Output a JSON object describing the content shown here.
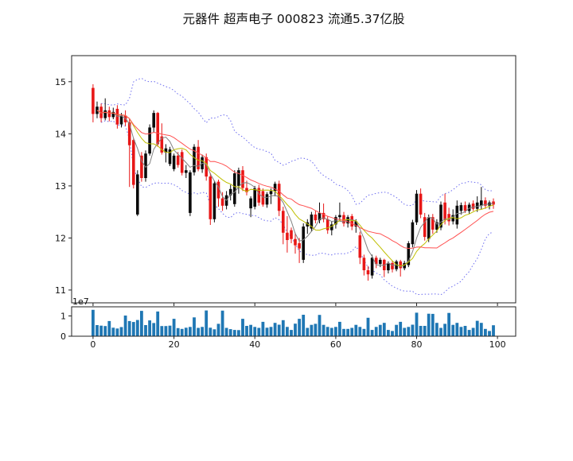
{
  "chart_data": {
    "type": "candlestick",
    "title": "元器件 超声电子 000823 流通5.37亿股",
    "legend_position": "none",
    "grid": false,
    "x_axis": {
      "ticks": [
        0,
        20,
        40,
        60,
        80,
        100
      ],
      "range": [
        -5.3,
        104.5
      ]
    },
    "price_axis": {
      "ticks": [
        11,
        12,
        13,
        14,
        15
      ],
      "range": [
        10.755,
        15.5
      ]
    },
    "volume_axis": {
      "ticks": [
        {
          "value": 0,
          "label": "0"
        },
        {
          "value": 10000000,
          "label": "1"
        }
      ],
      "offset_label": "1e7",
      "range": [
        0,
        14500000
      ]
    },
    "colors": {
      "up": "#0a0a0a",
      "down": "#e81717",
      "volume": "#1f77b4",
      "frame": "#222222"
    },
    "overlays": {
      "moving_averages": [
        {
          "name": "MA5",
          "window": 5,
          "color": "#808080"
        },
        {
          "name": "MA10",
          "window": 10,
          "color": "#bfbf00"
        },
        {
          "name": "MA20",
          "window": 20,
          "color": "#ff5050"
        }
      ],
      "bollinger": {
        "window": 20,
        "mult": 2,
        "color": "#6b6bef"
      }
    },
    "series": {
      "ohlc": [
        [
          14.88,
          14.95,
          14.22,
          14.38
        ],
        [
          14.38,
          14.62,
          14.3,
          14.52
        ],
        [
          14.52,
          14.58,
          14.22,
          14.3
        ],
        [
          14.3,
          14.68,
          14.26,
          14.45
        ],
        [
          14.45,
          14.52,
          14.24,
          14.32
        ],
        [
          14.32,
          14.5,
          14.28,
          14.42
        ],
        [
          14.48,
          14.55,
          14.1,
          14.18
        ],
        [
          14.18,
          14.4,
          14.12,
          14.35
        ],
        [
          14.35,
          14.45,
          14.15,
          14.22
        ],
        [
          14.22,
          14.28,
          12.98,
          13.78
        ],
        [
          13.88,
          13.92,
          12.95,
          13.02
        ],
        [
          12.45,
          13.3,
          12.42,
          13.22
        ],
        [
          13.58,
          13.65,
          13.08,
          13.15
        ],
        [
          13.15,
          13.68,
          13.08,
          13.62
        ],
        [
          13.62,
          14.18,
          13.58,
          14.12
        ],
        [
          14.12,
          14.45,
          14.02,
          14.4
        ],
        [
          14.4,
          14.42,
          13.75,
          13.8
        ],
        [
          13.95,
          14.2,
          13.6,
          13.64
        ],
        [
          13.64,
          13.8,
          13.45,
          13.72
        ],
        [
          13.42,
          13.75,
          13.38,
          13.7
        ],
        [
          13.32,
          13.62,
          13.28,
          13.58
        ],
        [
          13.58,
          13.65,
          13.35,
          13.4
        ],
        [
          13.65,
          13.7,
          13.2,
          13.25
        ],
        [
          13.25,
          13.4,
          13.15,
          13.3
        ],
        [
          12.48,
          13.3,
          12.42,
          13.26
        ],
        [
          13.26,
          13.8,
          13.2,
          13.75
        ],
        [
          13.75,
          13.88,
          13.28,
          13.32
        ],
        [
          13.32,
          13.6,
          13.25,
          13.55
        ],
        [
          13.55,
          13.62,
          13.1,
          13.18
        ],
        [
          13.18,
          13.25,
          12.25,
          12.36
        ],
        [
          12.36,
          13.1,
          12.3,
          13.05
        ],
        [
          13.08,
          13.12,
          12.6,
          12.76
        ],
        [
          12.76,
          12.88,
          12.52,
          12.62
        ],
        [
          12.62,
          12.9,
          12.55,
          12.82
        ],
        [
          12.82,
          13.02,
          12.72,
          12.94
        ],
        [
          12.65,
          13.3,
          12.6,
          13.24
        ],
        [
          13.0,
          13.35,
          12.85,
          13.3
        ],
        [
          13.3,
          13.38,
          12.9,
          12.96
        ],
        [
          12.96,
          13.1,
          12.82,
          12.88
        ],
        [
          12.57,
          12.8,
          12.4,
          12.76
        ],
        [
          12.6,
          13.0,
          12.55,
          12.96
        ],
        [
          12.96,
          13.02,
          12.62,
          12.68
        ],
        [
          12.9,
          12.95,
          12.6,
          12.64
        ],
        [
          12.64,
          12.88,
          12.58,
          12.84
        ],
        [
          12.84,
          12.95,
          12.65,
          12.9
        ],
        [
          12.9,
          13.08,
          12.8,
          13.04
        ],
        [
          13.04,
          13.1,
          12.42,
          12.52
        ],
        [
          12.52,
          12.6,
          11.88,
          12.1
        ],
        [
          12.1,
          12.42,
          11.72,
          11.96
        ],
        [
          12.15,
          12.2,
          11.9,
          11.98
        ],
        [
          11.98,
          12.1,
          11.7,
          11.86
        ],
        [
          11.9,
          12.0,
          11.52,
          11.8
        ],
        [
          11.58,
          12.28,
          11.52,
          12.22
        ],
        [
          12.22,
          12.36,
          12.08,
          12.3
        ],
        [
          12.18,
          12.5,
          12.12,
          12.45
        ],
        [
          12.45,
          12.52,
          12.28,
          12.34
        ],
        [
          12.34,
          12.68,
          12.28,
          12.48
        ],
        [
          12.48,
          12.66,
          12.3,
          12.36
        ],
        [
          12.36,
          12.42,
          12.08,
          12.15
        ],
        [
          12.15,
          12.32,
          12.05,
          12.26
        ],
        [
          12.26,
          12.44,
          12.18,
          12.4
        ],
        [
          12.4,
          12.68,
          12.32,
          12.44
        ],
        [
          12.44,
          12.5,
          12.22,
          12.28
        ],
        [
          12.28,
          12.44,
          12.2,
          12.4
        ],
        [
          12.42,
          12.46,
          12.15,
          12.22
        ],
        [
          12.22,
          12.36,
          12.1,
          12.32
        ],
        [
          12.05,
          12.12,
          11.5,
          11.62
        ],
        [
          11.62,
          11.68,
          11.28,
          11.38
        ],
        [
          11.38,
          11.46,
          11.18,
          11.3
        ],
        [
          11.28,
          11.68,
          11.22,
          11.62
        ],
        [
          11.62,
          11.66,
          11.42,
          11.5
        ],
        [
          11.5,
          11.62,
          11.44,
          11.58
        ],
        [
          11.58,
          11.6,
          11.25,
          11.38
        ],
        [
          11.38,
          11.55,
          11.32,
          11.52
        ],
        [
          11.52,
          11.56,
          11.34,
          11.4
        ],
        [
          11.4,
          11.58,
          11.36,
          11.55
        ],
        [
          11.55,
          11.58,
          11.26,
          11.42
        ],
        [
          11.42,
          11.56,
          11.38,
          11.52
        ],
        [
          11.48,
          11.94,
          11.44,
          11.9
        ],
        [
          11.88,
          12.35,
          11.82,
          12.3
        ],
        [
          12.3,
          12.92,
          12.25,
          12.85
        ],
        [
          12.85,
          12.95,
          12.38,
          12.45
        ],
        [
          12.4,
          12.48,
          11.95,
          12.02
        ],
        [
          11.98,
          12.45,
          11.92,
          12.4
        ],
        [
          12.4,
          12.46,
          12.08,
          12.16
        ],
        [
          12.16,
          12.36,
          12.1,
          12.3
        ],
        [
          12.2,
          12.7,
          12.15,
          12.64
        ],
        [
          12.68,
          12.85,
          12.26,
          12.34
        ],
        [
          12.46,
          12.58,
          12.24,
          12.32
        ],
        [
          12.32,
          12.55,
          12.26,
          12.44
        ],
        [
          12.26,
          12.72,
          12.18,
          12.62
        ],
        [
          12.52,
          12.68,
          12.45,
          12.63
        ],
        [
          12.63,
          12.7,
          12.48,
          12.52
        ],
        [
          12.52,
          12.68,
          12.46,
          12.64
        ],
        [
          12.66,
          12.72,
          12.52,
          12.56
        ],
        [
          12.56,
          12.8,
          12.5,
          12.68
        ],
        [
          12.62,
          12.98,
          12.55,
          12.72
        ],
        [
          12.72,
          12.78,
          12.56,
          12.62
        ],
        [
          12.62,
          12.72,
          12.55,
          12.68
        ],
        [
          12.7,
          12.76,
          12.56,
          12.64
        ]
      ],
      "volume": [
        13000000,
        5500000,
        5200000,
        5000000,
        7500000,
        4200000,
        3800000,
        4500000,
        10200000,
        7500000,
        7000000,
        8000000,
        12500000,
        5500000,
        7800000,
        6500000,
        12200000,
        5000000,
        5000000,
        5200000,
        8600000,
        4000000,
        3600000,
        4200000,
        4600000,
        9300000,
        4100000,
        4600000,
        12700000,
        4200000,
        3400000,
        6100000,
        12600000,
        4100000,
        3500000,
        3100000,
        3000000,
        8600000,
        5100000,
        5600000,
        4600000,
        4100000,
        7100000,
        4200000,
        4600000,
        6600000,
        5700000,
        7900000,
        4600000,
        3100000,
        6200000,
        8600000,
        10600000,
        4100000,
        5600000,
        6100000,
        10500000,
        5600000,
        4600000,
        4100000,
        4600000,
        7100000,
        3600000,
        3600000,
        4100000,
        5600000,
        4600000,
        3600000,
        9100000,
        3100000,
        4600000,
        5600000,
        6600000,
        3100000,
        2600000,
        5600000,
        7100000,
        4100000,
        4600000,
        5700000,
        11600000,
        5100000,
        5100000,
        11100000,
        11000000,
        6600000,
        4100000,
        6100000,
        11500000,
        5600000,
        6600000,
        4600000,
        5100000,
        3100000,
        4100000,
        7600000,
        6600000,
        3600000,
        2600000,
        5400000
      ]
    }
  }
}
